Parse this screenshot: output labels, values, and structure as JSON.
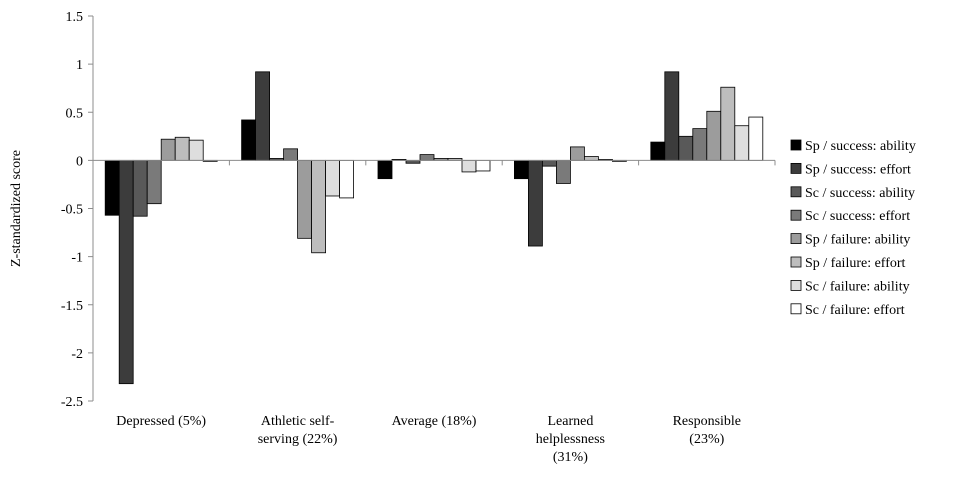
{
  "chart_data": {
    "type": "bar",
    "title": "",
    "xlabel": "",
    "ylabel": "Z-standardized score",
    "ylim": [
      -2.5,
      1.5
    ],
    "yticks": [
      "1.5",
      "1",
      "0.5",
      "0",
      "-0.5",
      "-1",
      "-1.5",
      "-2",
      "-2.5"
    ],
    "ytick_values": [
      1.5,
      1,
      0.5,
      0,
      -0.5,
      -1,
      -1.5,
      -2,
      -2.5
    ],
    "grid": false,
    "legend_position": "right",
    "categories": [
      [
        "Depressed (5%)"
      ],
      [
        "Athletic self-",
        "serving (22%)"
      ],
      [
        "Average (18%)"
      ],
      [
        "Learned",
        "helplessness",
        "(31%)"
      ],
      [
        "Responsible",
        "(23%)"
      ]
    ],
    "series": [
      {
        "name": "Sp / success: ability",
        "color": "#000000",
        "values": [
          -0.57,
          0.42,
          -0.19,
          -0.19,
          0.19
        ]
      },
      {
        "name": "Sp / success: effort",
        "color": "#3c3c3c",
        "values": [
          -2.32,
          0.92,
          0.01,
          -0.89,
          0.92
        ]
      },
      {
        "name": "Sc / success: ability",
        "color": "#595959",
        "values": [
          -0.58,
          0.02,
          -0.03,
          -0.06,
          0.25
        ]
      },
      {
        "name": "Sc / success: effort",
        "color": "#7a7a7a",
        "values": [
          -0.45,
          0.12,
          0.06,
          -0.24,
          0.33
        ]
      },
      {
        "name": "Sp / failure: ability",
        "color": "#9c9c9c",
        "values": [
          0.22,
          -0.81,
          0.02,
          0.14,
          0.51
        ]
      },
      {
        "name": "Sp / failure: effort",
        "color": "#bdbdbd",
        "values": [
          0.24,
          -0.96,
          0.02,
          0.04,
          0.76
        ]
      },
      {
        "name": "Sc / failure: ability",
        "color": "#dedede",
        "values": [
          0.21,
          -0.37,
          -0.12,
          0.01,
          0.36
        ]
      },
      {
        "name": "Sc / failure: effort",
        "color": "#ffffff",
        "values": [
          -0.01,
          -0.39,
          -0.11,
          -0.01,
          0.45
        ]
      }
    ]
  }
}
